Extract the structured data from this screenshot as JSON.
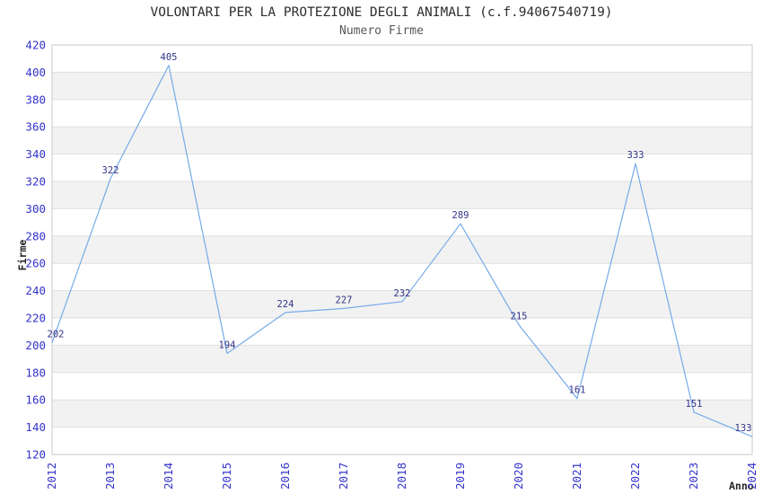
{
  "chart_data": {
    "type": "line",
    "title": "VOLONTARI PER LA PROTEZIONE DEGLI ANIMALI (c.f.94067540719)",
    "subtitle": "Numero Firme",
    "xlabel": "Anno",
    "ylabel": "Firme",
    "categories": [
      "2012",
      "2013",
      "2014",
      "2015",
      "2016",
      "2017",
      "2018",
      "2019",
      "2020",
      "2021",
      "2022",
      "2023",
      "2024"
    ],
    "series": [
      {
        "name": "Numero Firme",
        "values": [
          202,
          322,
          405,
          194,
          224,
          227,
          232,
          289,
          215,
          161,
          333,
          151,
          133
        ]
      }
    ],
    "ylim": [
      120,
      420
    ],
    "ytick_step": 20,
    "yticks": [
      120,
      140,
      160,
      180,
      200,
      220,
      240,
      260,
      280,
      300,
      320,
      340,
      360,
      380,
      400,
      420
    ],
    "show_data_labels": true,
    "legend": "none",
    "grid": "horizontal",
    "band_style": "alternating-horizontal",
    "colors": {
      "line": "#76ABE8",
      "tick_label": "#3333CC",
      "data_label": "#333388",
      "band_gray": "#F2F2F2",
      "gridline": "#DFDFDF",
      "plot_border": "#C8C8C8",
      "title": "#2d2d2d",
      "subtitle": "#595959",
      "axis_title": "#262626",
      "background": "#FFFFFF"
    }
  }
}
